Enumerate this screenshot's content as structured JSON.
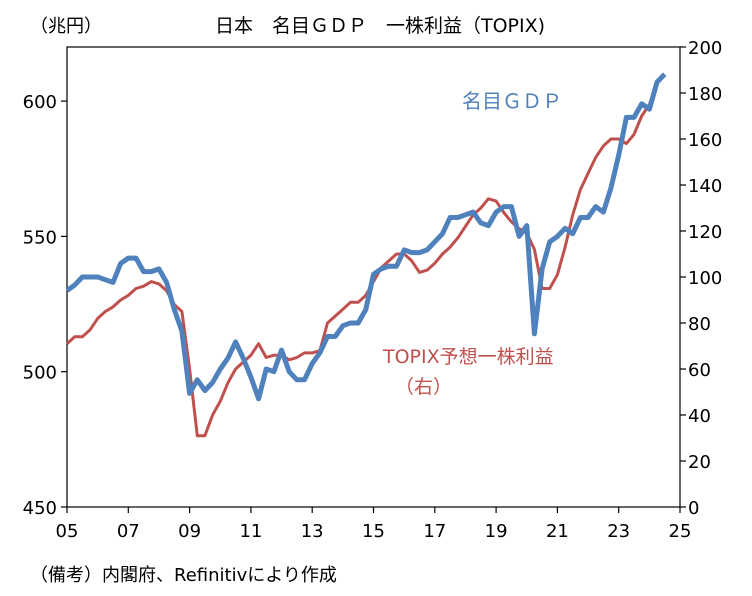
{
  "chart_data": {
    "type": "line",
    "title": "日本　名目ＧＤＰ　一株利益（TOPIX)",
    "left_axis_unit": "（兆円）",
    "footnote": "（備考）内閣府、Refinitivにより作成",
    "xlim": [
      2005,
      2025
    ],
    "x_ticks": [
      "05",
      "07",
      "09",
      "11",
      "13",
      "15",
      "17",
      "19",
      "21",
      "23",
      "25"
    ],
    "x_tick_values": [
      2005,
      2007,
      2009,
      2011,
      2013,
      2015,
      2017,
      2019,
      2021,
      2023,
      2025
    ],
    "y_left": {
      "ylim": [
        450,
        620
      ],
      "ticks": [
        "450",
        "500",
        "550",
        "600"
      ],
      "tick_values": [
        450,
        500,
        550,
        600
      ]
    },
    "y_right": {
      "ylim": [
        0,
        200
      ],
      "ticks": [
        "0",
        "20",
        "40",
        "60",
        "80",
        "100",
        "120",
        "140",
        "160",
        "180",
        "200"
      ],
      "tick_values": [
        0,
        20,
        40,
        60,
        80,
        100,
        120,
        140,
        160,
        180,
        200
      ]
    },
    "grid": false,
    "series": [
      {
        "name": "名目ＧＤＰ",
        "axis": "left",
        "color": "#4f81bd",
        "points": [
          [
            2005.0,
            530
          ],
          [
            2005.25,
            532
          ],
          [
            2005.5,
            535
          ],
          [
            2005.75,
            535
          ],
          [
            2006.0,
            535
          ],
          [
            2006.25,
            534
          ],
          [
            2006.5,
            533
          ],
          [
            2006.75,
            540
          ],
          [
            2007.0,
            542
          ],
          [
            2007.25,
            542
          ],
          [
            2007.5,
            537
          ],
          [
            2007.75,
            537
          ],
          [
            2008.0,
            538
          ],
          [
            2008.25,
            533
          ],
          [
            2008.5,
            523
          ],
          [
            2008.75,
            515
          ],
          [
            2009.0,
            492
          ],
          [
            2009.25,
            497
          ],
          [
            2009.5,
            493
          ],
          [
            2009.75,
            496
          ],
          [
            2010.0,
            501
          ],
          [
            2010.25,
            505
          ],
          [
            2010.5,
            511
          ],
          [
            2010.75,
            505
          ],
          [
            2011.0,
            498
          ],
          [
            2011.25,
            490
          ],
          [
            2011.5,
            501
          ],
          [
            2011.75,
            500
          ],
          [
            2012.0,
            508
          ],
          [
            2012.25,
            500
          ],
          [
            2012.5,
            497
          ],
          [
            2012.75,
            497
          ],
          [
            2013.0,
            503
          ],
          [
            2013.25,
            507
          ],
          [
            2013.5,
            513
          ],
          [
            2013.75,
            513
          ],
          [
            2014.0,
            517
          ],
          [
            2014.25,
            518
          ],
          [
            2014.5,
            518
          ],
          [
            2014.75,
            523
          ],
          [
            2015.0,
            536
          ],
          [
            2015.25,
            538
          ],
          [
            2015.5,
            539
          ],
          [
            2015.75,
            539
          ],
          [
            2016.0,
            545
          ],
          [
            2016.25,
            544
          ],
          [
            2016.5,
            544
          ],
          [
            2016.75,
            545
          ],
          [
            2017.0,
            548
          ],
          [
            2017.25,
            551
          ],
          [
            2017.5,
            557
          ],
          [
            2017.75,
            557
          ],
          [
            2018.0,
            558
          ],
          [
            2018.25,
            559
          ],
          [
            2018.5,
            555
          ],
          [
            2018.75,
            554
          ],
          [
            2019.0,
            559
          ],
          [
            2019.25,
            561
          ],
          [
            2019.5,
            561
          ],
          [
            2019.75,
            550
          ],
          [
            2020.0,
            554
          ],
          [
            2020.25,
            514
          ],
          [
            2020.5,
            538
          ],
          [
            2020.75,
            548
          ],
          [
            2021.0,
            550
          ],
          [
            2021.25,
            553
          ],
          [
            2021.5,
            551
          ],
          [
            2021.75,
            557
          ],
          [
            2022.0,
            557
          ],
          [
            2022.25,
            561
          ],
          [
            2022.5,
            559
          ],
          [
            2022.75,
            568
          ],
          [
            2023.0,
            580
          ],
          [
            2023.25,
            594
          ],
          [
            2023.5,
            594
          ],
          [
            2023.75,
            599
          ],
          [
            2024.0,
            597
          ],
          [
            2024.25,
            607
          ],
          [
            2024.5,
            610
          ]
        ]
      },
      {
        "name": "TOPIX予想一株利益（右）",
        "label_line1": "TOPIX予想一株利益",
        "label_line2": "（右）",
        "axis": "right",
        "color": "#c0504d",
        "points": [
          [
            2005.0,
            71
          ],
          [
            2005.25,
            74
          ],
          [
            2005.5,
            74
          ],
          [
            2005.75,
            77
          ],
          [
            2006.0,
            82
          ],
          [
            2006.25,
            85
          ],
          [
            2006.5,
            87
          ],
          [
            2006.75,
            90
          ],
          [
            2007.0,
            92
          ],
          [
            2007.25,
            95
          ],
          [
            2007.5,
            96
          ],
          [
            2007.75,
            98
          ],
          [
            2008.0,
            97
          ],
          [
            2008.25,
            94
          ],
          [
            2008.5,
            88
          ],
          [
            2008.75,
            85
          ],
          [
            2009.0,
            60
          ],
          [
            2009.25,
            31
          ],
          [
            2009.5,
            31
          ],
          [
            2009.75,
            40
          ],
          [
            2010.0,
            46
          ],
          [
            2010.25,
            54
          ],
          [
            2010.5,
            60
          ],
          [
            2010.75,
            63
          ],
          [
            2011.0,
            66
          ],
          [
            2011.25,
            71
          ],
          [
            2011.5,
            65
          ],
          [
            2011.75,
            66
          ],
          [
            2012.0,
            66
          ],
          [
            2012.25,
            64
          ],
          [
            2012.5,
            65
          ],
          [
            2012.75,
            67
          ],
          [
            2013.0,
            67
          ],
          [
            2013.25,
            68
          ],
          [
            2013.5,
            80
          ],
          [
            2013.75,
            83
          ],
          [
            2014.0,
            86
          ],
          [
            2014.25,
            89
          ],
          [
            2014.5,
            89
          ],
          [
            2014.75,
            92
          ],
          [
            2015.0,
            98
          ],
          [
            2015.25,
            104
          ],
          [
            2015.5,
            107
          ],
          [
            2015.75,
            110
          ],
          [
            2016.0,
            110
          ],
          [
            2016.25,
            107
          ],
          [
            2016.5,
            102
          ],
          [
            2016.75,
            103
          ],
          [
            2017.0,
            106
          ],
          [
            2017.25,
            110
          ],
          [
            2017.5,
            113
          ],
          [
            2017.75,
            117
          ],
          [
            2018.0,
            122
          ],
          [
            2018.25,
            127
          ],
          [
            2018.5,
            130
          ],
          [
            2018.75,
            134
          ],
          [
            2019.0,
            133
          ],
          [
            2019.25,
            128
          ],
          [
            2019.5,
            124
          ],
          [
            2019.75,
            121
          ],
          [
            2020.0,
            119
          ],
          [
            2020.25,
            112
          ],
          [
            2020.5,
            95
          ],
          [
            2020.75,
            95
          ],
          [
            2021.0,
            101
          ],
          [
            2021.25,
            113
          ],
          [
            2021.5,
            127
          ],
          [
            2021.75,
            138
          ],
          [
            2022.0,
            145
          ],
          [
            2022.25,
            152
          ],
          [
            2022.5,
            157
          ],
          [
            2022.75,
            160
          ],
          [
            2023.0,
            160
          ],
          [
            2023.25,
            158
          ],
          [
            2023.5,
            162
          ],
          [
            2023.75,
            170
          ],
          [
            2024.0,
            175
          ],
          [
            2024.25,
            184
          ]
        ]
      }
    ]
  }
}
